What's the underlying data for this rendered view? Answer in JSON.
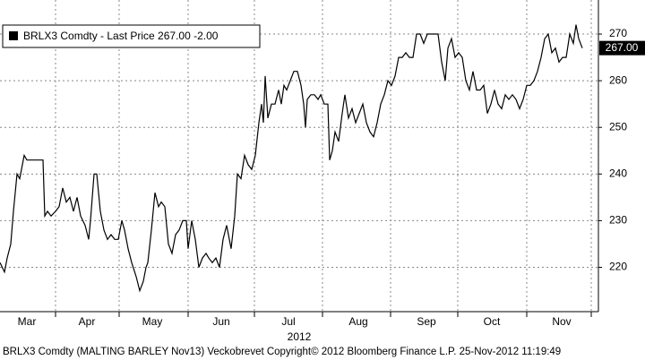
{
  "chart_data": {
    "type": "line",
    "footer": "BRLX3 Comdty (MALTING BARLEY  Nov13) Veckobrevet Copyright© 2012 Bloomberg Finance L.P. 25-Nov-2012 11:19:49",
    "x_sublabel": "2012",
    "x": [
      0,
      5,
      8,
      12,
      15,
      19,
      22,
      27,
      30,
      35,
      40,
      48,
      50,
      53,
      57,
      62,
      66,
      70,
      74,
      78,
      82,
      86,
      90,
      95,
      99,
      101,
      105,
      108,
      112,
      116,
      120,
      124,
      128,
      132,
      136,
      139,
      143,
      147,
      152,
      156,
      160,
      163,
      165,
      169,
      173,
      177,
      180,
      184,
      188,
      192,
      196,
      200,
      204,
      208,
      210,
      214,
      218,
      222,
      226,
      230,
      233,
      237,
      241,
      245,
      249,
      253,
      258,
      262,
      265,
      269,
      273,
      277,
      281,
      285,
      289,
      292,
      294,
      296,
      299,
      303,
      307,
      311,
      314,
      317,
      320,
      324,
      328,
      332,
      336,
      339,
      341,
      343,
      347,
      351,
      355,
      358,
      362,
      366,
      368,
      371,
      374,
      378,
      382,
      385,
      389,
      393,
      397,
      401,
      405,
      409,
      413,
      417,
      421,
      425,
      429,
      433,
      437,
      441,
      445,
      449,
      453,
      457,
      461,
      465,
      469,
      473,
      477,
      481,
      485,
      489,
      493,
      497,
      500,
      504,
      508,
      512,
      516,
      520,
      524,
      528,
      532,
      536,
      540,
      544,
      548,
      552,
      556,
      560,
      564,
      568,
      572,
      576,
      580,
      584,
      588,
      592,
      596,
      600,
      604,
      608,
      612,
      616,
      620,
      624,
      628,
      632,
      636,
      640,
      643,
      646,
      650
    ],
    "series": [
      {
        "name": "BRLX3 Comdty - Last Price 267.00 -2.00",
        "color": "#000000",
        "values": [
          221,
          219,
          222,
          225,
          232,
          240,
          239,
          244,
          243,
          243,
          243,
          243,
          231,
          232,
          231,
          232,
          233,
          237,
          234,
          235,
          232,
          235,
          231,
          229,
          226,
          230,
          240,
          240,
          232,
          228,
          226,
          227,
          226,
          226,
          230,
          228,
          224,
          221,
          218,
          215,
          217,
          220,
          221,
          228,
          236,
          233,
          234,
          233,
          225,
          223,
          227,
          228,
          230,
          230,
          224,
          230,
          226,
          220,
          222,
          223,
          222,
          221,
          222,
          220,
          226,
          229,
          224,
          231,
          240,
          239,
          244,
          242,
          241,
          244,
          251,
          255,
          251,
          261,
          252,
          255,
          255,
          258,
          255,
          259,
          258,
          260,
          262,
          262,
          259,
          255,
          250,
          256,
          257,
          257,
          256,
          257,
          255,
          255,
          243,
          245,
          249,
          247,
          253,
          257,
          252,
          254,
          251,
          253,
          255,
          251,
          249,
          248,
          251,
          255,
          257,
          260,
          259,
          261,
          265,
          265,
          266,
          265,
          265,
          270,
          270,
          268,
          270,
          270,
          270,
          270,
          264,
          260,
          267,
          269,
          265,
          266,
          265,
          260,
          258,
          262,
          258,
          258,
          259,
          253,
          255,
          258,
          255,
          254,
          257,
          256,
          257,
          256,
          254,
          256,
          259,
          259,
          260,
          262,
          265,
          269,
          270,
          266,
          267,
          264,
          265,
          265,
          270,
          268,
          272,
          269,
          267
        ]
      }
    ],
    "last_price": {
      "value": 267,
      "label": "267.00"
    },
    "xlim": [
      0,
      668
    ],
    "xticks": [
      {
        "value": 30,
        "label": "Mar"
      },
      {
        "value": 97,
        "label": "Apr"
      },
      {
        "value": 170,
        "label": "May"
      },
      {
        "value": 247,
        "label": "Jun"
      },
      {
        "value": 322,
        "label": "Jul"
      },
      {
        "value": 400,
        "label": "Aug"
      },
      {
        "value": 476,
        "label": "Sep"
      },
      {
        "value": 549,
        "label": "Oct"
      },
      {
        "value": 627,
        "label": "Nov"
      }
    ],
    "xgrid": [
      62,
      133,
      210,
      284,
      360,
      436,
      511,
      588,
      660
    ],
    "ylim": [
      210.5,
      277.3
    ],
    "yticks": [
      220,
      230,
      240,
      250,
      260,
      270
    ],
    "grid": true
  }
}
